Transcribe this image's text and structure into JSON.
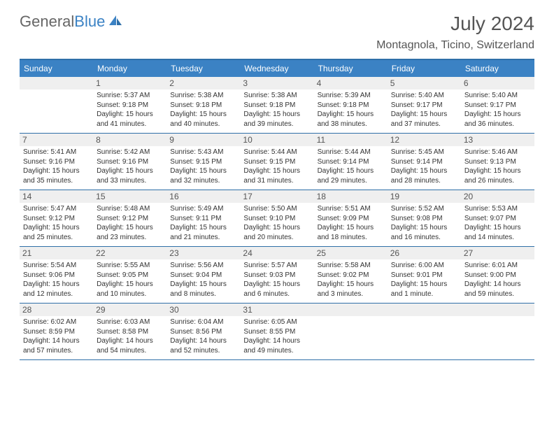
{
  "logo": {
    "text_gray": "General",
    "text_blue": "Blue"
  },
  "title": "July 2024",
  "location": "Montagnola, Ticino, Switzerland",
  "colors": {
    "header_bg": "#3b82c4",
    "border": "#2f6fa8",
    "daynum_bg": "#efefef",
    "text": "#333333",
    "title_text": "#555555"
  },
  "day_names": [
    "Sunday",
    "Monday",
    "Tuesday",
    "Wednesday",
    "Thursday",
    "Friday",
    "Saturday"
  ],
  "weeks": [
    [
      null,
      {
        "n": "1",
        "sr": "5:37 AM",
        "ss": "9:18 PM",
        "dl": "15 hours and 41 minutes."
      },
      {
        "n": "2",
        "sr": "5:38 AM",
        "ss": "9:18 PM",
        "dl": "15 hours and 40 minutes."
      },
      {
        "n": "3",
        "sr": "5:38 AM",
        "ss": "9:18 PM",
        "dl": "15 hours and 39 minutes."
      },
      {
        "n": "4",
        "sr": "5:39 AM",
        "ss": "9:18 PM",
        "dl": "15 hours and 38 minutes."
      },
      {
        "n": "5",
        "sr": "5:40 AM",
        "ss": "9:17 PM",
        "dl": "15 hours and 37 minutes."
      },
      {
        "n": "6",
        "sr": "5:40 AM",
        "ss": "9:17 PM",
        "dl": "15 hours and 36 minutes."
      }
    ],
    [
      {
        "n": "7",
        "sr": "5:41 AM",
        "ss": "9:16 PM",
        "dl": "15 hours and 35 minutes."
      },
      {
        "n": "8",
        "sr": "5:42 AM",
        "ss": "9:16 PM",
        "dl": "15 hours and 33 minutes."
      },
      {
        "n": "9",
        "sr": "5:43 AM",
        "ss": "9:15 PM",
        "dl": "15 hours and 32 minutes."
      },
      {
        "n": "10",
        "sr": "5:44 AM",
        "ss": "9:15 PM",
        "dl": "15 hours and 31 minutes."
      },
      {
        "n": "11",
        "sr": "5:44 AM",
        "ss": "9:14 PM",
        "dl": "15 hours and 29 minutes."
      },
      {
        "n": "12",
        "sr": "5:45 AM",
        "ss": "9:14 PM",
        "dl": "15 hours and 28 minutes."
      },
      {
        "n": "13",
        "sr": "5:46 AM",
        "ss": "9:13 PM",
        "dl": "15 hours and 26 minutes."
      }
    ],
    [
      {
        "n": "14",
        "sr": "5:47 AM",
        "ss": "9:12 PM",
        "dl": "15 hours and 25 minutes."
      },
      {
        "n": "15",
        "sr": "5:48 AM",
        "ss": "9:12 PM",
        "dl": "15 hours and 23 minutes."
      },
      {
        "n": "16",
        "sr": "5:49 AM",
        "ss": "9:11 PM",
        "dl": "15 hours and 21 minutes."
      },
      {
        "n": "17",
        "sr": "5:50 AM",
        "ss": "9:10 PM",
        "dl": "15 hours and 20 minutes."
      },
      {
        "n": "18",
        "sr": "5:51 AM",
        "ss": "9:09 PM",
        "dl": "15 hours and 18 minutes."
      },
      {
        "n": "19",
        "sr": "5:52 AM",
        "ss": "9:08 PM",
        "dl": "15 hours and 16 minutes."
      },
      {
        "n": "20",
        "sr": "5:53 AM",
        "ss": "9:07 PM",
        "dl": "15 hours and 14 minutes."
      }
    ],
    [
      {
        "n": "21",
        "sr": "5:54 AM",
        "ss": "9:06 PM",
        "dl": "15 hours and 12 minutes."
      },
      {
        "n": "22",
        "sr": "5:55 AM",
        "ss": "9:05 PM",
        "dl": "15 hours and 10 minutes."
      },
      {
        "n": "23",
        "sr": "5:56 AM",
        "ss": "9:04 PM",
        "dl": "15 hours and 8 minutes."
      },
      {
        "n": "24",
        "sr": "5:57 AM",
        "ss": "9:03 PM",
        "dl": "15 hours and 6 minutes."
      },
      {
        "n": "25",
        "sr": "5:58 AM",
        "ss": "9:02 PM",
        "dl": "15 hours and 3 minutes."
      },
      {
        "n": "26",
        "sr": "6:00 AM",
        "ss": "9:01 PM",
        "dl": "15 hours and 1 minute."
      },
      {
        "n": "27",
        "sr": "6:01 AM",
        "ss": "9:00 PM",
        "dl": "14 hours and 59 minutes."
      }
    ],
    [
      {
        "n": "28",
        "sr": "6:02 AM",
        "ss": "8:59 PM",
        "dl": "14 hours and 57 minutes."
      },
      {
        "n": "29",
        "sr": "6:03 AM",
        "ss": "8:58 PM",
        "dl": "14 hours and 54 minutes."
      },
      {
        "n": "30",
        "sr": "6:04 AM",
        "ss": "8:56 PM",
        "dl": "14 hours and 52 minutes."
      },
      {
        "n": "31",
        "sr": "6:05 AM",
        "ss": "8:55 PM",
        "dl": "14 hours and 49 minutes."
      },
      null,
      null,
      null
    ]
  ],
  "labels": {
    "sunrise": "Sunrise:",
    "sunset": "Sunset:",
    "daylight": "Daylight:"
  }
}
